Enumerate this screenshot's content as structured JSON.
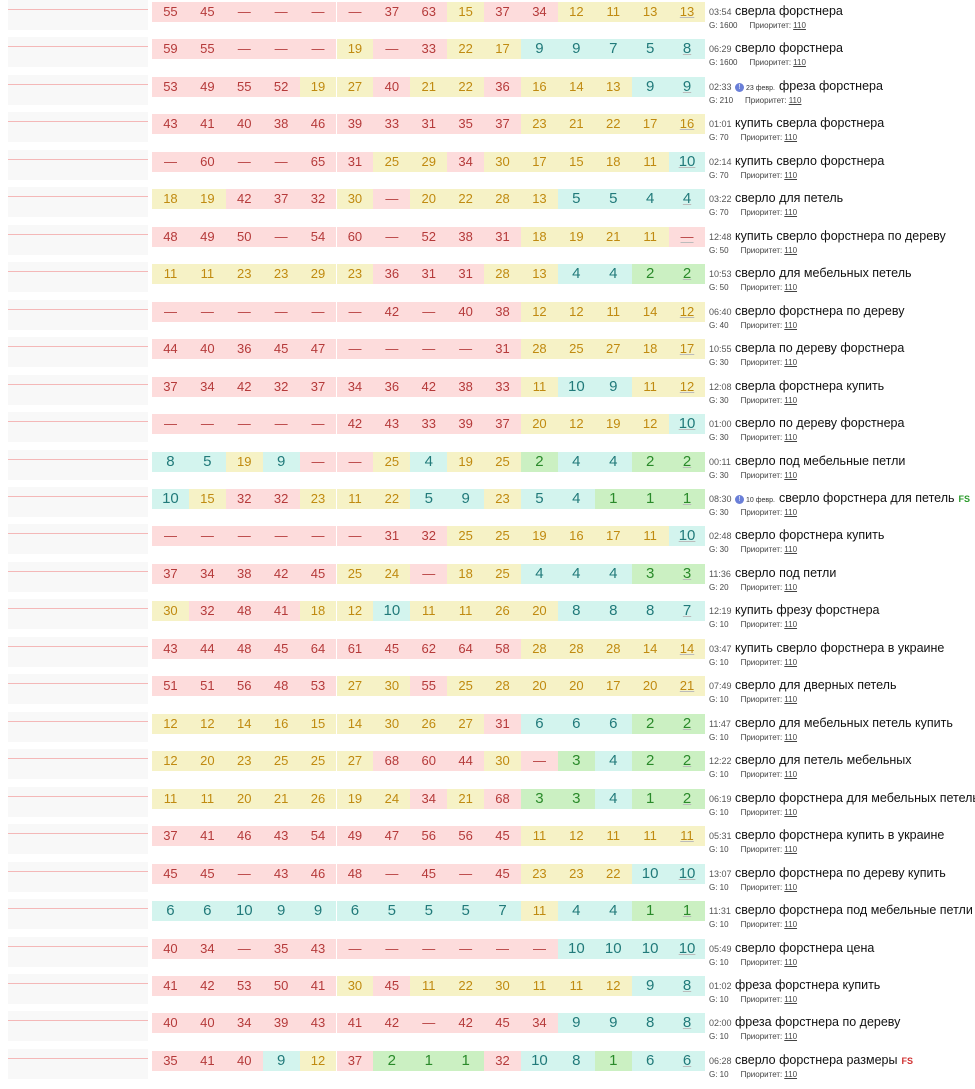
{
  "rows": [
    {
      "cells": [
        55,
        45,
        "—",
        "—",
        "—",
        "—",
        37,
        63,
        15,
        37,
        34,
        12,
        11,
        13,
        13
      ],
      "time": "03:54",
      "keyword": "сверла форстнера",
      "g": "G: 1600",
      "priority_label": "Приоритет:",
      "priority": "110"
    },
    {
      "cells": [
        59,
        55,
        "—",
        "—",
        "—",
        19,
        "—",
        33,
        22,
        17,
        9,
        9,
        7,
        5,
        8
      ],
      "time": "06:29",
      "keyword": "сверло форстнера",
      "g": "G: 1600",
      "priority_label": "Приоритет:",
      "priority": "110"
    },
    {
      "cells": [
        53,
        49,
        55,
        52,
        19,
        27,
        40,
        21,
        22,
        36,
        16,
        14,
        13,
        9,
        9
      ],
      "time": "02:33",
      "note": "23 февр.",
      "keyword": "фреза форстнера",
      "g": "G: 210",
      "priority_label": "Приоритет:",
      "priority": "110"
    },
    {
      "cells": [
        43,
        41,
        40,
        38,
        46,
        39,
        33,
        31,
        35,
        37,
        23,
        21,
        22,
        17,
        16
      ],
      "time": "01:01",
      "keyword": "купить сверла форстнера",
      "g": "G: 70",
      "priority_label": "Приоритет:",
      "priority": "110"
    },
    {
      "cells": [
        "—",
        60,
        "—",
        "—",
        65,
        31,
        25,
        29,
        34,
        30,
        17,
        15,
        18,
        11,
        10
      ],
      "time": "02:14",
      "keyword": "купить сверло форстнера",
      "g": "G: 70",
      "priority_label": "Приоритет:",
      "priority": "110"
    },
    {
      "cells": [
        18,
        19,
        42,
        37,
        32,
        30,
        "—",
        20,
        22,
        28,
        13,
        5,
        5,
        4,
        4
      ],
      "time": "03:22",
      "keyword": "сверло для петель",
      "g": "G: 70",
      "priority_label": "Приоритет:",
      "priority": "110"
    },
    {
      "cells": [
        48,
        49,
        50,
        "—",
        54,
        60,
        "—",
        52,
        38,
        31,
        18,
        19,
        21,
        11,
        "—"
      ],
      "time": "12:48",
      "keyword": "купить сверло форстнера по дереву",
      "g": "G: 50",
      "priority_label": "Приоритет:",
      "priority": "110"
    },
    {
      "cells": [
        11,
        11,
        23,
        23,
        29,
        23,
        36,
        31,
        31,
        28,
        13,
        4,
        4,
        2,
        2
      ],
      "time": "10:53",
      "keyword": "сверло для мебельных петель",
      "g": "G: 50",
      "priority_label": "Приоритет:",
      "priority": "110"
    },
    {
      "cells": [
        "—",
        "—",
        "—",
        "—",
        "—",
        "—",
        42,
        "—",
        40,
        38,
        12,
        12,
        11,
        14,
        12
      ],
      "time": "06:40",
      "keyword": "сверло форстнера по дереву",
      "g": "G: 40",
      "priority_label": "Приоритет:",
      "priority": "110"
    },
    {
      "cells": [
        44,
        40,
        36,
        45,
        47,
        "—",
        "—",
        "—",
        "—",
        31,
        28,
        25,
        27,
        18,
        17
      ],
      "time": "10:55",
      "keyword": "сверла по дереву форстнера",
      "g": "G: 30",
      "priority_label": "Приоритет:",
      "priority": "110"
    },
    {
      "cells": [
        37,
        34,
        42,
        32,
        37,
        34,
        36,
        42,
        38,
        33,
        11,
        10,
        9,
        11,
        12
      ],
      "time": "12:08",
      "keyword": "сверла форстнера купить",
      "g": "G: 30",
      "priority_label": "Приоритет:",
      "priority": "110"
    },
    {
      "cells": [
        "—",
        "—",
        "—",
        "—",
        "—",
        42,
        43,
        33,
        39,
        37,
        20,
        12,
        19,
        12,
        10
      ],
      "time": "01:00",
      "keyword": "сверло по дереву форстнера",
      "g": "G: 30",
      "priority_label": "Приоритет:",
      "priority": "110"
    },
    {
      "cells": [
        8,
        5,
        19,
        9,
        "—",
        "—",
        25,
        4,
        19,
        25,
        2,
        4,
        4,
        2,
        2
      ],
      "time": "00:11",
      "keyword": "сверло под мебельные петли",
      "g": "G: 30",
      "priority_label": "Приоритет:",
      "priority": "110"
    },
    {
      "cells": [
        10,
        15,
        32,
        32,
        23,
        11,
        22,
        5,
        9,
        23,
        5,
        4,
        1,
        1,
        1
      ],
      "time": "08:30",
      "note": "10 февр.",
      "keyword": "сверло форстнера для петель",
      "badge": "FS",
      "g": "G: 30",
      "priority_label": "Приоритет:",
      "priority": "110"
    },
    {
      "cells": [
        "—",
        "—",
        "—",
        "—",
        "—",
        "—",
        31,
        32,
        25,
        25,
        19,
        16,
        17,
        11,
        10
      ],
      "time": "02:48",
      "keyword": "сверло форстнера купить",
      "g": "G: 30",
      "priority_label": "Приоритет:",
      "priority": "110"
    },
    {
      "cells": [
        37,
        34,
        38,
        42,
        45,
        25,
        24,
        "—",
        18,
        25,
        4,
        4,
        4,
        3,
        3
      ],
      "time": "11:36",
      "keyword": "сверло под петли",
      "g": "G: 20",
      "priority_label": "Приоритет:",
      "priority": "110"
    },
    {
      "cells": [
        30,
        32,
        48,
        41,
        18,
        12,
        10,
        11,
        11,
        26,
        20,
        8,
        8,
        8,
        7
      ],
      "time": "12:19",
      "keyword": "купить фрезу форстнера",
      "g": "G: 10",
      "priority_label": "Приоритет:",
      "priority": "110"
    },
    {
      "cells": [
        43,
        44,
        48,
        45,
        64,
        61,
        45,
        62,
        64,
        58,
        28,
        28,
        28,
        14,
        14
      ],
      "time": "03:47",
      "keyword": "купить сверло форстнера в украине",
      "g": "G: 10",
      "priority_label": "Приоритет:",
      "priority": "110"
    },
    {
      "cells": [
        51,
        51,
        56,
        48,
        53,
        27,
        30,
        55,
        25,
        28,
        20,
        20,
        17,
        20,
        21
      ],
      "time": "07:49",
      "keyword": "сверло для дверных петель",
      "g": "G: 10",
      "priority_label": "Приоритет:",
      "priority": "110"
    },
    {
      "cells": [
        12,
        12,
        14,
        16,
        15,
        14,
        30,
        26,
        27,
        31,
        6,
        6,
        6,
        2,
        2
      ],
      "time": "11:47",
      "keyword": "сверло для мебельных петель купить",
      "g": "G: 10",
      "priority_label": "Приоритет:",
      "priority": "110"
    },
    {
      "cells": [
        12,
        20,
        23,
        25,
        25,
        27,
        68,
        60,
        44,
        30,
        "—",
        3,
        4,
        2,
        2
      ],
      "time": "12:22",
      "keyword": "сверло для петель мебельных",
      "g": "G: 10",
      "priority_label": "Приоритет:",
      "priority": "110"
    },
    {
      "cells": [
        11,
        11,
        20,
        21,
        26,
        19,
        24,
        34,
        21,
        68,
        3,
        3,
        4,
        1,
        2
      ],
      "time": "06:19",
      "keyword": "сверло форстнера для мебельных петель",
      "g": "G: 10",
      "priority_label": "Приоритет:",
      "priority": "110"
    },
    {
      "cells": [
        37,
        41,
        46,
        43,
        54,
        49,
        47,
        56,
        56,
        45,
        11,
        12,
        11,
        11,
        11
      ],
      "time": "05:31",
      "keyword": "сверло форстнера купить в украине",
      "g": "G: 10",
      "priority_label": "Приоритет:",
      "priority": "110"
    },
    {
      "cells": [
        45,
        45,
        "—",
        43,
        46,
        48,
        "—",
        45,
        "—",
        45,
        23,
        23,
        22,
        10,
        10
      ],
      "time": "13:07",
      "keyword": "сверло форстнера по дереву купить",
      "g": "G: 10",
      "priority_label": "Приоритет:",
      "priority": "110"
    },
    {
      "cells": [
        6,
        6,
        10,
        9,
        9,
        6,
        5,
        5,
        5,
        7,
        11,
        4,
        4,
        1,
        1
      ],
      "time": "11:31",
      "keyword": "сверло форстнера под мебельные петли",
      "g": "G: 10",
      "priority_label": "Приоритет:",
      "priority": "110"
    },
    {
      "cells": [
        40,
        34,
        "—",
        35,
        43,
        "—",
        "—",
        "—",
        "—",
        "—",
        "—",
        10,
        10,
        10,
        10
      ],
      "time": "05:49",
      "keyword": "сверло форстнера цена",
      "g": "G: 10",
      "priority_label": "Приоритет:",
      "priority": "110"
    },
    {
      "cells": [
        41,
        42,
        53,
        50,
        41,
        30,
        45,
        11,
        22,
        30,
        11,
        11,
        12,
        9,
        8
      ],
      "time": "01:02",
      "keyword": "фреза форстнера купить",
      "g": "G: 10",
      "priority_label": "Приоритет:",
      "priority": "110"
    },
    {
      "cells": [
        40,
        40,
        34,
        39,
        43,
        41,
        42,
        "—",
        42,
        45,
        34,
        9,
        9,
        8,
        8
      ],
      "time": "02:00",
      "keyword": "фреза форстнера по дереву",
      "g": "G: 10",
      "priority_label": "Приоритет:",
      "priority": "110"
    },
    {
      "cells": [
        35,
        41,
        40,
        9,
        12,
        37,
        2,
        1,
        1,
        32,
        10,
        8,
        1,
        6,
        6
      ],
      "time": "06:28",
      "keyword": "сверло форстнера размеры",
      "badge": "FS",
      "g": "G: 10",
      "priority_label": "Приоритет:",
      "priority": "110"
    }
  ]
}
